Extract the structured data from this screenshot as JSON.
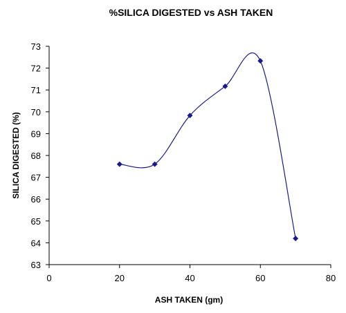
{
  "chart_data": {
    "type": "scatter",
    "title": "%SILICA DIGESTED vs ASH TAKEN",
    "xlabel": "ASH TAKEN (gm)",
    "ylabel": "SILICA DIGESTED (%)",
    "xlim": [
      0,
      80
    ],
    "ylim": [
      63,
      73
    ],
    "xticks": [
      "0",
      "20",
      "40",
      "60",
      "80"
    ],
    "yticks": [
      "63",
      "64",
      "65",
      "66",
      "67",
      "68",
      "69",
      "70",
      "71",
      "72",
      "73"
    ],
    "smooth_line": true,
    "grid": false,
    "legend": "none",
    "series": [
      {
        "x": [
          20,
          30,
          40,
          50,
          60,
          70
        ],
        "y": [
          67.6,
          67.6,
          69.83,
          71.17,
          72.33,
          64.2
        ]
      }
    ],
    "colors": {
      "series": "#1a1a8c",
      "axis": "#000000"
    }
  }
}
